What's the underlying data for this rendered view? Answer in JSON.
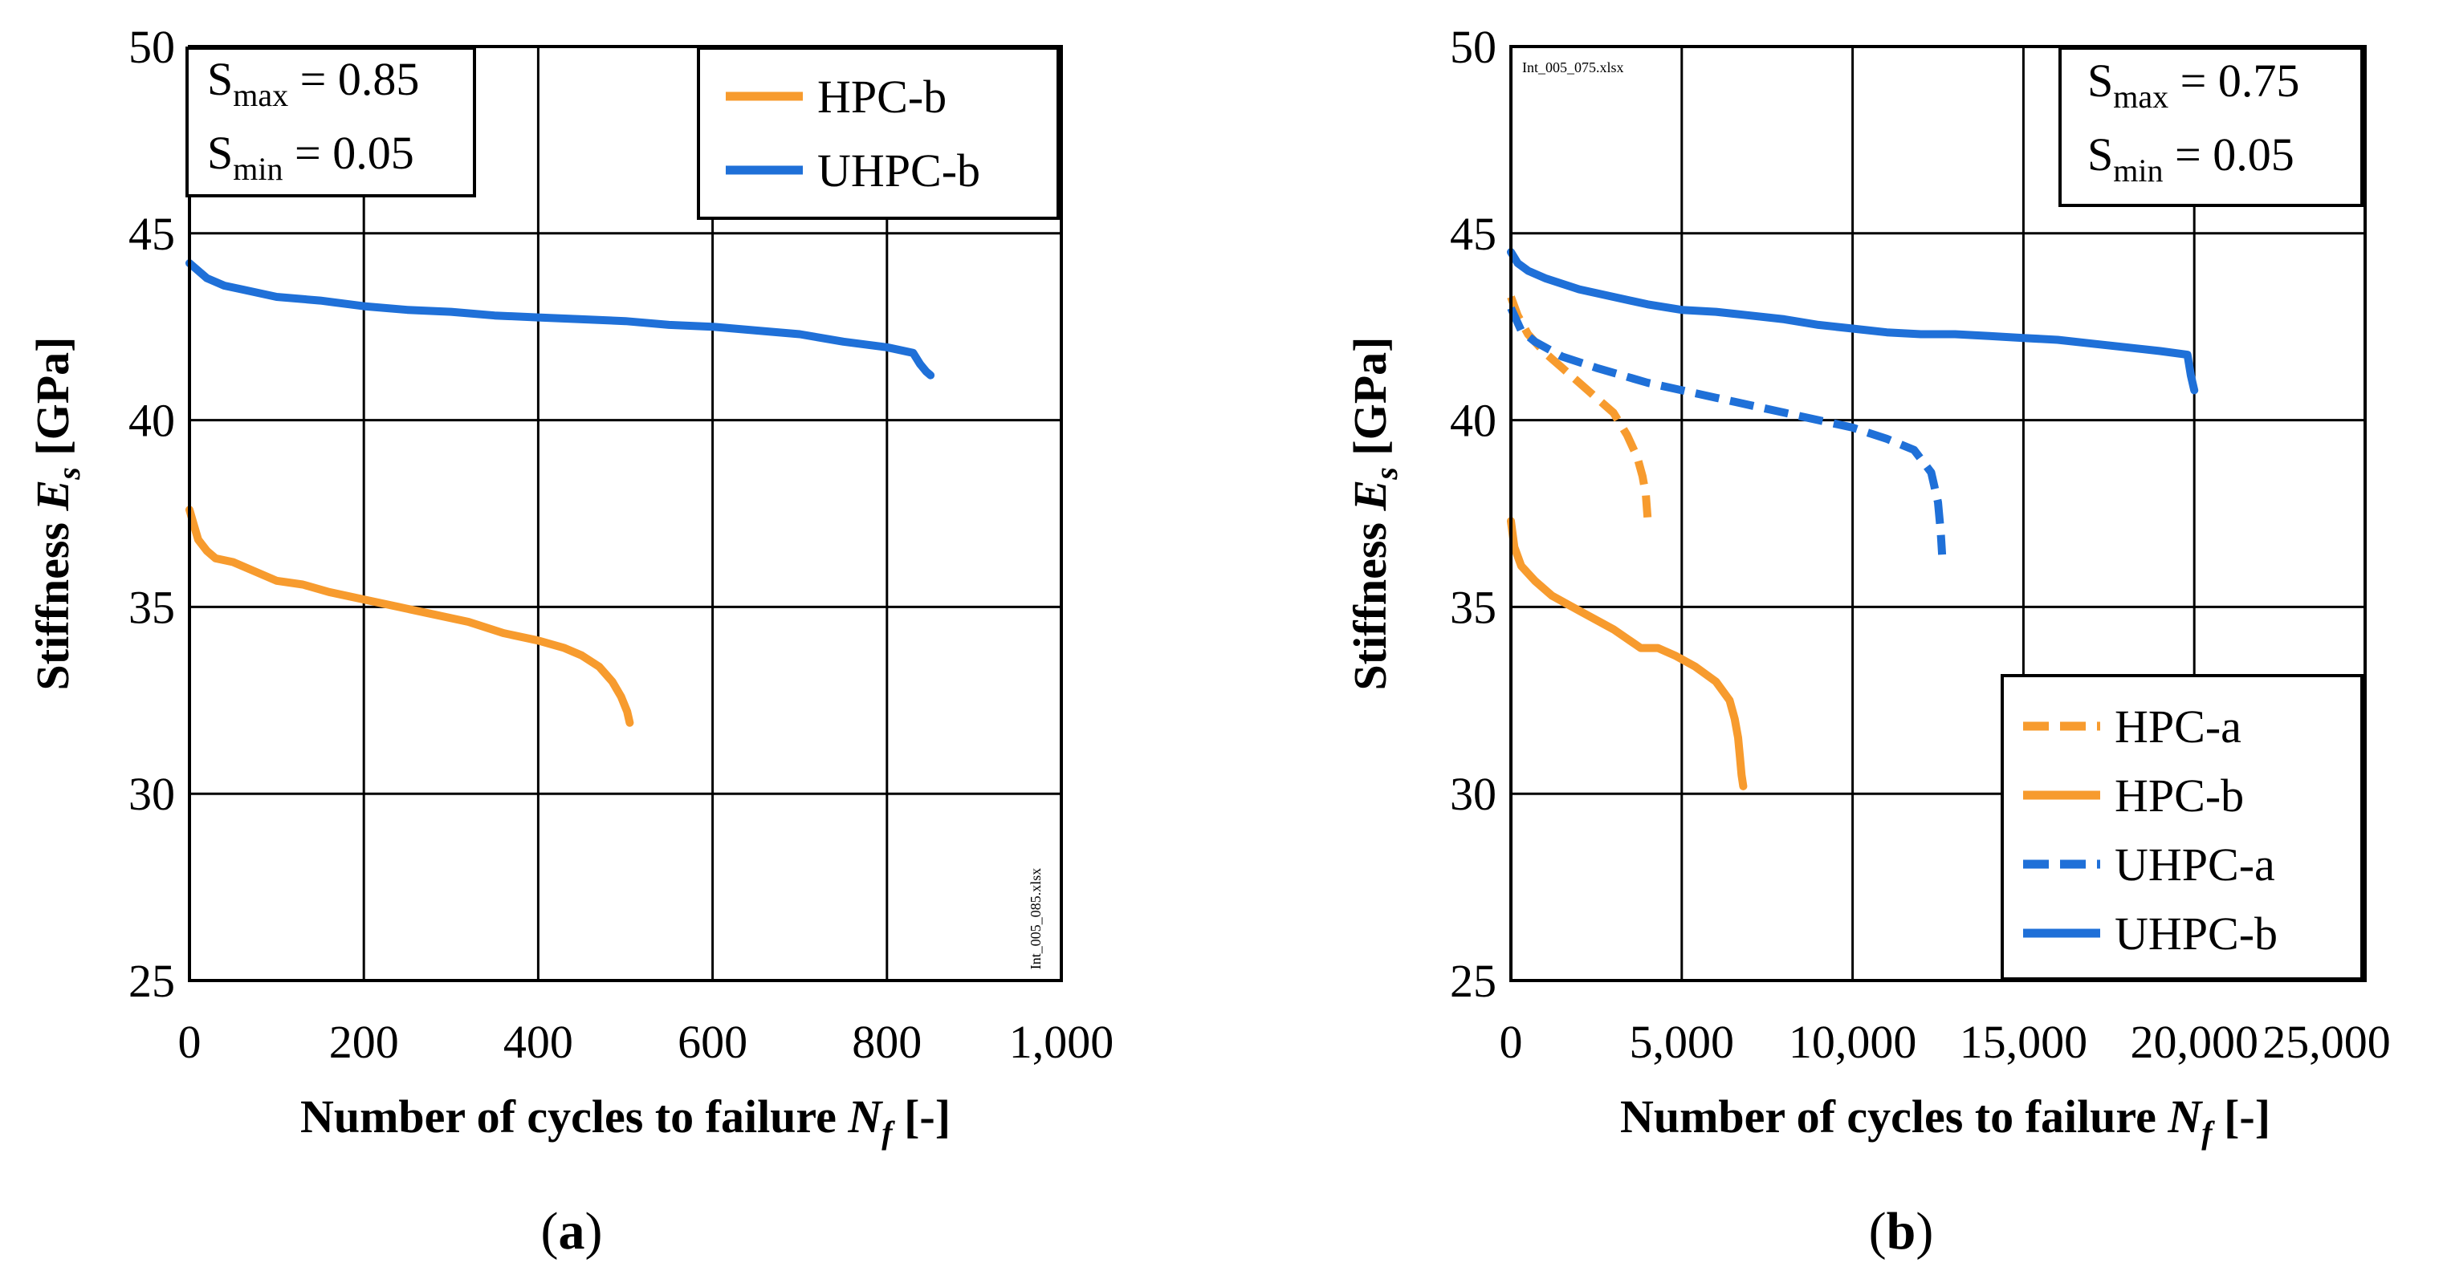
{
  "chart_data": [
    {
      "id": "a",
      "type": "line",
      "caption_letter": "a",
      "ylabel_prefix": "Stiffness ",
      "ylabel_var": "E",
      "ylabel_sub": "s",
      "ylabel_suffix": " [GPa]",
      "xlabel_prefix": "Number of cycles to failure ",
      "xlabel_var": "N",
      "xlabel_sub": "f",
      "xlabel_suffix": " [-]",
      "xlim": [
        0,
        1000
      ],
      "ylim": [
        25,
        50
      ],
      "xticks": [
        0,
        200,
        400,
        600,
        800,
        1000
      ],
      "xtick_labels": [
        "0",
        "200",
        "400",
        "600",
        "800",
        "1,000"
      ],
      "yticks": [
        25,
        30,
        35,
        40,
        45,
        50
      ],
      "ytick_labels": [
        "25",
        "30",
        "35",
        "40",
        "45",
        "50"
      ],
      "grid": true,
      "filename_text": "Int_005_085.xlsx",
      "stress_box": {
        "smax_label": "S",
        "smax_sub": "max",
        "smax_value": " = 0.85",
        "smin_label": "S",
        "smin_sub": "min",
        "smin_value": " = 0.05"
      },
      "legend_position": "top-right",
      "series": [
        {
          "name": "HPC-b",
          "color": "#F79B2E",
          "dashed": false,
          "x": [
            0,
            5,
            10,
            20,
            30,
            50,
            70,
            100,
            130,
            160,
            200,
            240,
            280,
            320,
            360,
            400,
            430,
            450,
            470,
            485,
            495,
            502,
            505
          ],
          "y": [
            37.6,
            37.2,
            36.8,
            36.5,
            36.3,
            36.2,
            36.0,
            35.7,
            35.6,
            35.4,
            35.2,
            35.0,
            34.8,
            34.6,
            34.3,
            34.1,
            33.9,
            33.7,
            33.4,
            33.0,
            32.6,
            32.2,
            31.9
          ]
        },
        {
          "name": "UHPC-b",
          "color": "#1F70D8",
          "dashed": false,
          "x": [
            0,
            10,
            20,
            40,
            60,
            100,
            150,
            200,
            250,
            300,
            350,
            400,
            450,
            500,
            550,
            600,
            650,
            700,
            750,
            800,
            830,
            838,
            845,
            850
          ],
          "y": [
            44.2,
            44.0,
            43.8,
            43.6,
            43.5,
            43.3,
            43.2,
            43.05,
            42.95,
            42.9,
            42.8,
            42.75,
            42.7,
            42.65,
            42.55,
            42.5,
            42.4,
            42.3,
            42.1,
            41.95,
            41.8,
            41.5,
            41.3,
            41.2
          ]
        }
      ]
    },
    {
      "id": "b",
      "type": "line",
      "caption_letter": "b",
      "ylabel_prefix": "Stiffness ",
      "ylabel_var": "E",
      "ylabel_sub": "s",
      "ylabel_suffix": " [GPa]",
      "xlabel_prefix": "Number of cycles to failure ",
      "xlabel_var": "N",
      "xlabel_sub": "f",
      "xlabel_suffix": " [-]",
      "xlim": [
        0,
        25000
      ],
      "ylim": [
        25,
        50
      ],
      "xticks": [
        0,
        5000,
        10000,
        15000,
        20000,
        25000
      ],
      "xtick_labels": [
        "0",
        "5,000",
        "10,000",
        "15,000",
        "20,000",
        "25,000"
      ],
      "yticks": [
        25,
        30,
        35,
        40,
        45,
        50
      ],
      "ytick_labels": [
        "25",
        "30",
        "35",
        "40",
        "45",
        "50"
      ],
      "grid": true,
      "filename_text": "Int_005_075.xlsx",
      "stress_box": {
        "smax_label": "S",
        "smax_sub": "max",
        "smax_value": " = 0.75",
        "smin_label": "S",
        "smin_sub": "min",
        "smin_value": " = 0.05"
      },
      "legend_position": "bottom-right",
      "series": [
        {
          "name": "HPC-a",
          "color": "#F79B2E",
          "dashed": true,
          "x": [
            0,
            200,
            500,
            1000,
            1500,
            2000,
            2500,
            3000,
            3400,
            3700,
            3850,
            3950,
            4000
          ],
          "y": [
            43.3,
            42.8,
            42.3,
            41.8,
            41.4,
            41.0,
            40.6,
            40.2,
            39.6,
            39.0,
            38.5,
            38.0,
            37.4
          ]
        },
        {
          "name": "HPC-b",
          "color": "#F79B2E",
          "dashed": false,
          "x": [
            0,
            100,
            300,
            700,
            1200,
            2000,
            3000,
            3800,
            4300,
            4800,
            5400,
            6000,
            6400,
            6550,
            6650,
            6700,
            6750,
            6800
          ],
          "y": [
            37.3,
            36.6,
            36.1,
            35.7,
            35.3,
            34.9,
            34.4,
            33.9,
            33.9,
            33.7,
            33.4,
            33.0,
            32.5,
            32.0,
            31.5,
            31.0,
            30.5,
            30.2
          ]
        },
        {
          "name": "UHPC-a",
          "color": "#1F70D8",
          "dashed": true,
          "x": [
            0,
            300,
            700,
            1500,
            2500,
            4000,
            6000,
            8000,
            10000,
            11000,
            11800,
            12300,
            12500,
            12580,
            12620
          ],
          "y": [
            43.0,
            42.4,
            42.1,
            41.7,
            41.4,
            41.0,
            40.6,
            40.2,
            39.8,
            39.5,
            39.2,
            38.6,
            37.8,
            37.0,
            36.4
          ]
        },
        {
          "name": "UHPC-b",
          "color": "#1F70D8",
          "dashed": false,
          "x": [
            0,
            200,
            500,
            1000,
            2000,
            3000,
            4000,
            5000,
            6000,
            7000,
            8000,
            9000,
            10000,
            11000,
            12000,
            13000,
            14000,
            15000,
            16000,
            17000,
            18000,
            19000,
            19800,
            19900,
            20000
          ],
          "y": [
            44.5,
            44.2,
            44.0,
            43.8,
            43.5,
            43.3,
            43.1,
            42.95,
            42.9,
            42.8,
            42.7,
            42.55,
            42.45,
            42.35,
            42.3,
            42.3,
            42.25,
            42.2,
            42.15,
            42.05,
            41.95,
            41.85,
            41.75,
            41.2,
            40.8
          ]
        }
      ]
    }
  ]
}
